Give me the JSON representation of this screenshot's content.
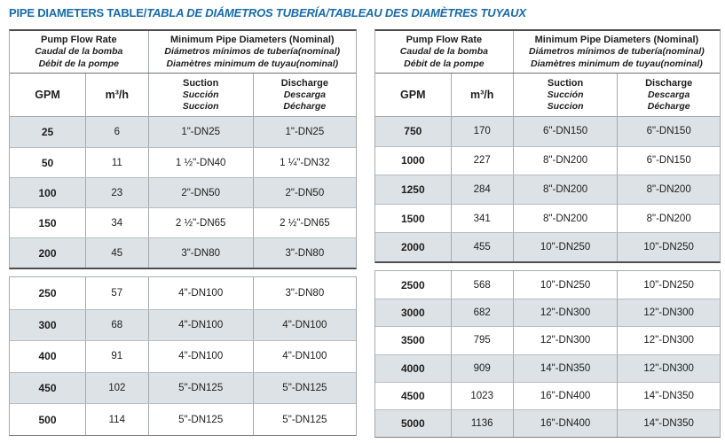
{
  "page": {
    "title_part1": "PIPE DIAMETERS TABLE/",
    "title_part2": "TABLA DE DIÁMETROS TUBERÍA/TABLEAU DES DIAMÈTRES TUYAUX"
  },
  "colors": {
    "title_blue": "#176bab",
    "row_shade": "#dce2e6",
    "border_dark": "#4e4e4e",
    "border_mid": "#a4aaae",
    "border_light": "#b6bcbf"
  },
  "tables": [
    {
      "header": {
        "flow_group": [
          "Pump Flow Rate",
          "Caudal de la bomba",
          "Débit de la pompe"
        ],
        "diameters_group": [
          "Minimum Pipe Diameters (Nominal)",
          "Diámetros mínimos de tubería(nominal)",
          "Diamètres minimum de tuyau(nominal)"
        ],
        "col_gpm": "GPM",
        "col_m3h": "m³/h",
        "col_suction": [
          "Suction",
          "Succión",
          "Succion"
        ],
        "col_discharge": [
          "Discharge",
          "Descarga",
          "Décharge"
        ]
      },
      "blocks": [
        {
          "shade_offset": 0,
          "rows": [
            [
              "25",
              "6",
              "1\"-DN25",
              "1\"-DN25"
            ],
            [
              "50",
              "11",
              "1 ½\"-DN40",
              "1 ¼\"-DN32"
            ],
            [
              "100",
              "23",
              "2\"-DN50",
              "2\"-DN50"
            ],
            [
              "150",
              "34",
              "2 ½\"-DN65",
              "2 ½\"-DN65"
            ],
            [
              "200",
              "45",
              "3\"-DN80",
              "3\"-DN80"
            ]
          ]
        },
        {
          "shade_offset": 1,
          "rows": [
            [
              "250",
              "57",
              "4\"-DN100",
              "3\"-DN80"
            ],
            [
              "300",
              "68",
              "4\"-DN100",
              "4\"-DN100"
            ],
            [
              "400",
              "91",
              "4\"-DN100",
              "4\"-DN100"
            ],
            [
              "450",
              "102",
              "5\"-DN125",
              "5\"-DN125"
            ],
            [
              "500",
              "114",
              "5\"-DN125",
              "5\"-DN125"
            ]
          ]
        }
      ]
    },
    {
      "header": {
        "flow_group": [
          "Pump Flow Rate",
          "Caudal de la bomba",
          "Débit de la pompe"
        ],
        "diameters_group": [
          "Minimum Pipe Diameters (Nominal)",
          "Diámetros mínimos de tubería(nominal)",
          "Diamètres minimum de tuyau(nominal)"
        ],
        "col_gpm": "GPM",
        "col_m3h": "m³/h",
        "col_suction": [
          "Suction",
          "Succión",
          "Succion"
        ],
        "col_discharge": [
          "Discharge",
          "Descarga",
          "Décharge"
        ]
      },
      "blocks": [
        {
          "shade_offset": 0,
          "rows": [
            [
              "750",
              "170",
              "6\"-DN150",
              "6\"-DN150"
            ],
            [
              "1000",
              "227",
              "8\"-DN200",
              "6\"-DN150"
            ],
            [
              "1250",
              "284",
              "8\"-DN200",
              "8\"-DN200"
            ],
            [
              "1500",
              "341",
              "8\"-DN200",
              "8\"-DN200"
            ],
            [
              "2000",
              "455",
              "10\"-DN250",
              "10\"-DN250"
            ]
          ]
        },
        {
          "shade_offset": 1,
          "rows": [
            [
              "2500",
              "568",
              "10\"-DN250",
              "10\"-DN250"
            ],
            [
              "3000",
              "682",
              "12\"-DN300",
              "12\"-DN300"
            ],
            [
              "3500",
              "795",
              "12\"-DN300",
              "12\"-DN300"
            ],
            [
              "4000",
              "909",
              "14\"-DN350",
              "12\"-DN300"
            ],
            [
              "4500",
              "1023",
              "16\"-DN400",
              "14\"-DN350"
            ],
            [
              "5000",
              "1136",
              "16\"-DN400",
              "14\"-DN350"
            ]
          ]
        }
      ]
    }
  ]
}
